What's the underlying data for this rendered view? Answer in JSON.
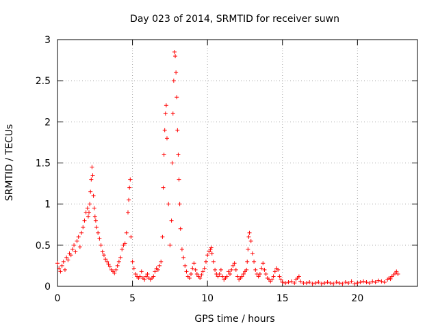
{
  "chart_data": {
    "type": "scatter",
    "title": "Day 023 of 2014, SRMTID for receiver suwn",
    "xlabel": "GPS time / hours",
    "ylabel": "SRMTID / TECUs",
    "xlim": [
      0,
      24
    ],
    "ylim": [
      0,
      3
    ],
    "xticks": [
      0,
      5,
      10,
      15,
      20
    ],
    "xtick_labels": [
      "0",
      "5",
      "10",
      "15",
      "20"
    ],
    "yticks": [
      0,
      0.5,
      1,
      1.5,
      2,
      2.5,
      3
    ],
    "ytick_labels": [
      "0",
      "0.5",
      "1",
      "1.5",
      "2",
      "2.5",
      "3"
    ],
    "grid": true,
    "marker": "+",
    "series": [
      {
        "name": "SRMTID",
        "color": "#ff0000",
        "x": [
          0.0,
          0.1,
          0.2,
          0.3,
          0.4,
          0.5,
          0.6,
          0.7,
          0.8,
          0.9,
          1.0,
          1.1,
          1.2,
          1.3,
          1.4,
          1.5,
          1.6,
          1.7,
          1.8,
          1.9,
          2.0,
          2.05,
          2.1,
          2.15,
          2.2,
          2.25,
          2.3,
          2.35,
          2.4,
          2.45,
          2.5,
          2.55,
          2.6,
          2.7,
          2.8,
          2.9,
          3.0,
          3.1,
          3.2,
          3.3,
          3.4,
          3.5,
          3.6,
          3.7,
          3.8,
          3.9,
          4.0,
          4.1,
          4.2,
          4.3,
          4.4,
          4.5,
          4.6,
          4.7,
          4.75,
          4.8,
          4.85,
          4.9,
          5.0,
          5.1,
          5.2,
          5.3,
          5.4,
          5.5,
          5.6,
          5.7,
          5.8,
          5.9,
          6.0,
          6.1,
          6.2,
          6.3,
          6.4,
          6.5,
          6.6,
          6.7,
          6.8,
          6.9,
          7.0,
          7.05,
          7.1,
          7.15,
          7.2,
          7.25,
          7.3,
          7.4,
          7.5,
          7.6,
          7.65,
          7.7,
          7.75,
          7.8,
          7.85,
          7.9,
          7.95,
          8.0,
          8.05,
          8.1,
          8.15,
          8.2,
          8.3,
          8.4,
          8.5,
          8.6,
          8.7,
          8.8,
          8.9,
          9.0,
          9.1,
          9.2,
          9.3,
          9.4,
          9.5,
          9.6,
          9.7,
          9.8,
          9.9,
          10.0,
          10.1,
          10.2,
          10.25,
          10.3,
          10.4,
          10.5,
          10.6,
          10.7,
          10.8,
          10.9,
          11.0,
          11.1,
          11.2,
          11.3,
          11.4,
          11.5,
          11.6,
          11.7,
          11.8,
          11.9,
          12.0,
          12.1,
          12.2,
          12.3,
          12.4,
          12.5,
          12.6,
          12.65,
          12.7,
          12.75,
          12.8,
          12.9,
          13.0,
          13.1,
          13.2,
          13.3,
          13.4,
          13.5,
          13.6,
          13.7,
          13.8,
          13.9,
          14.0,
          14.1,
          14.2,
          14.3,
          14.4,
          14.5,
          14.6,
          14.7,
          14.8,
          14.9,
          15.0,
          15.2,
          15.4,
          15.6,
          15.8,
          15.9,
          16.0,
          16.1,
          16.2,
          16.4,
          16.6,
          16.8,
          17.0,
          17.2,
          17.4,
          17.6,
          17.8,
          18.0,
          18.2,
          18.4,
          18.6,
          18.8,
          19.0,
          19.2,
          19.4,
          19.6,
          19.8,
          20.0,
          20.2,
          20.4,
          20.6,
          20.8,
          21.0,
          21.2,
          21.4,
          21.6,
          21.8,
          22.0,
          22.1,
          22.2,
          22.3,
          22.4,
          22.5,
          22.6,
          22.7
        ],
        "y": [
          0.28,
          0.22,
          0.18,
          0.25,
          0.3,
          0.2,
          0.35,
          0.32,
          0.4,
          0.38,
          0.45,
          0.5,
          0.42,
          0.55,
          0.6,
          0.48,
          0.65,
          0.72,
          0.8,
          0.9,
          0.95,
          0.85,
          0.9,
          1.0,
          1.15,
          1.3,
          1.45,
          1.35,
          1.1,
          0.95,
          0.85,
          0.8,
          0.72,
          0.65,
          0.58,
          0.5,
          0.42,
          0.38,
          0.33,
          0.3,
          0.27,
          0.24,
          0.2,
          0.18,
          0.16,
          0.2,
          0.25,
          0.3,
          0.35,
          0.45,
          0.5,
          0.52,
          0.65,
          0.9,
          1.05,
          1.2,
          1.3,
          0.6,
          0.3,
          0.22,
          0.15,
          0.12,
          0.1,
          0.12,
          0.18,
          0.1,
          0.08,
          0.12,
          0.15,
          0.1,
          0.08,
          0.1,
          0.12,
          0.18,
          0.22,
          0.2,
          0.25,
          0.3,
          0.6,
          1.2,
          1.6,
          1.9,
          2.1,
          2.2,
          1.8,
          1.0,
          0.5,
          0.8,
          1.5,
          2.1,
          2.5,
          2.85,
          2.8,
          2.6,
          2.3,
          1.9,
          1.6,
          1.3,
          1.0,
          0.7,
          0.45,
          0.35,
          0.25,
          0.18,
          0.12,
          0.1,
          0.15,
          0.22,
          0.28,
          0.2,
          0.15,
          0.12,
          0.1,
          0.14,
          0.18,
          0.22,
          0.3,
          0.38,
          0.42,
          0.45,
          0.47,
          0.4,
          0.3,
          0.2,
          0.15,
          0.12,
          0.15,
          0.2,
          0.12,
          0.08,
          0.1,
          0.12,
          0.18,
          0.15,
          0.2,
          0.25,
          0.28,
          0.2,
          0.12,
          0.08,
          0.1,
          0.12,
          0.15,
          0.18,
          0.2,
          0.3,
          0.45,
          0.6,
          0.65,
          0.55,
          0.4,
          0.3,
          0.2,
          0.15,
          0.12,
          0.15,
          0.22,
          0.28,
          0.2,
          0.15,
          0.1,
          0.08,
          0.06,
          0.08,
          0.12,
          0.18,
          0.22,
          0.2,
          0.12,
          0.08,
          0.05,
          0.04,
          0.05,
          0.06,
          0.04,
          0.08,
          0.1,
          0.12,
          0.06,
          0.04,
          0.04,
          0.05,
          0.03,
          0.04,
          0.05,
          0.03,
          0.04,
          0.05,
          0.04,
          0.03,
          0.05,
          0.04,
          0.03,
          0.05,
          0.04,
          0.06,
          0.03,
          0.04,
          0.05,
          0.06,
          0.05,
          0.04,
          0.06,
          0.05,
          0.07,
          0.06,
          0.05,
          0.08,
          0.1,
          0.09,
          0.12,
          0.14,
          0.16,
          0.18,
          0.15
        ]
      }
    ]
  }
}
